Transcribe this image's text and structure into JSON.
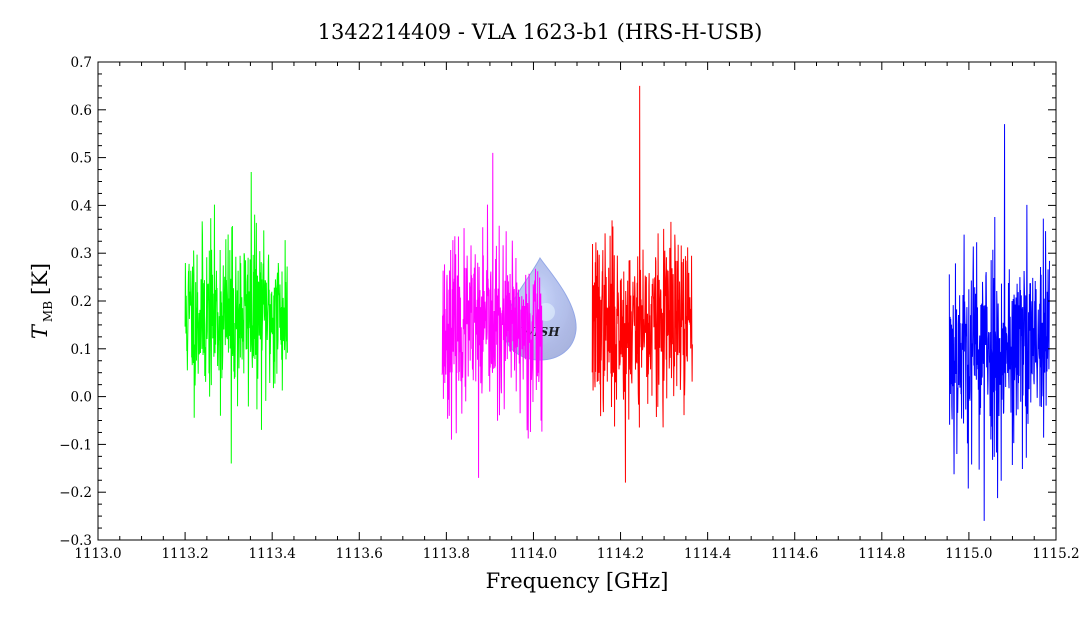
{
  "chart_data": {
    "type": "line",
    "title": "1342214409 - VLA 1623-b1 (HRS-H-USB)",
    "xlabel": "Frequency [GHz]",
    "ylabel": {
      "main": "T",
      "subscript": "MB",
      "unit": "[K]"
    },
    "xlim": [
      1113.0,
      1115.2
    ],
    "ylim": [
      -0.3,
      0.7
    ],
    "x_ticks": [
      {
        "value": 1113.0,
        "label": "1113.0"
      },
      {
        "value": 1113.2,
        "label": "1113.2"
      },
      {
        "value": 1113.4,
        "label": "1113.4"
      },
      {
        "value": 1113.6,
        "label": "1113.6"
      },
      {
        "value": 1113.8,
        "label": "1113.8"
      },
      {
        "value": 1114.0,
        "label": "1114.0"
      },
      {
        "value": 1114.2,
        "label": "1114.2"
      },
      {
        "value": 1114.4,
        "label": "1114.4"
      },
      {
        "value": 1114.6,
        "label": "1114.6"
      },
      {
        "value": 1114.8,
        "label": "1114.8"
      },
      {
        "value": 1115.0,
        "label": "1115.0"
      },
      {
        "value": 1115.2,
        "label": "1115.2"
      }
    ],
    "y_ticks": [
      {
        "value": -0.3,
        "label": "−0.3"
      },
      {
        "value": -0.2,
        "label": "−0.2"
      },
      {
        "value": -0.1,
        "label": "−0.1"
      },
      {
        "value": 0.0,
        "label": "0.0"
      },
      {
        "value": 0.1,
        "label": "0.1"
      },
      {
        "value": 0.2,
        "label": "0.2"
      },
      {
        "value": 0.3,
        "label": "0.3"
      },
      {
        "value": 0.4,
        "label": "0.4"
      },
      {
        "value": 0.5,
        "label": "0.5"
      },
      {
        "value": 0.6,
        "label": "0.6"
      },
      {
        "value": 0.7,
        "label": "0.7"
      }
    ],
    "grid": false,
    "legend": "none",
    "series": [
      {
        "color": "#00ff00",
        "x_range": [
          1113.2,
          1113.435
        ],
        "mean": 0.17,
        "noise": 0.085,
        "min": -0.14,
        "max": 0.47,
        "seed": 11,
        "points": 360
      },
      {
        "color": "#ff00ff",
        "x_range": [
          1113.79,
          1114.02
        ],
        "mean": 0.14,
        "noise": 0.085,
        "min": -0.17,
        "max": 0.51,
        "seed": 23,
        "points": 360
      },
      {
        "color": "#ff0000",
        "x_range": [
          1114.135,
          1114.365
        ],
        "mean": 0.15,
        "noise": 0.09,
        "min": -0.18,
        "max": 0.65,
        "seed": 37,
        "points": 360
      },
      {
        "color": "#0000ff",
        "x_range": [
          1114.955,
          1115.185
        ],
        "mean": 0.1,
        "noise": 0.11,
        "min": -0.26,
        "max": 0.57,
        "seed": 53,
        "points": 360
      }
    ]
  },
  "watermark": {
    "text": "WISH",
    "color": "#9aaee0"
  }
}
